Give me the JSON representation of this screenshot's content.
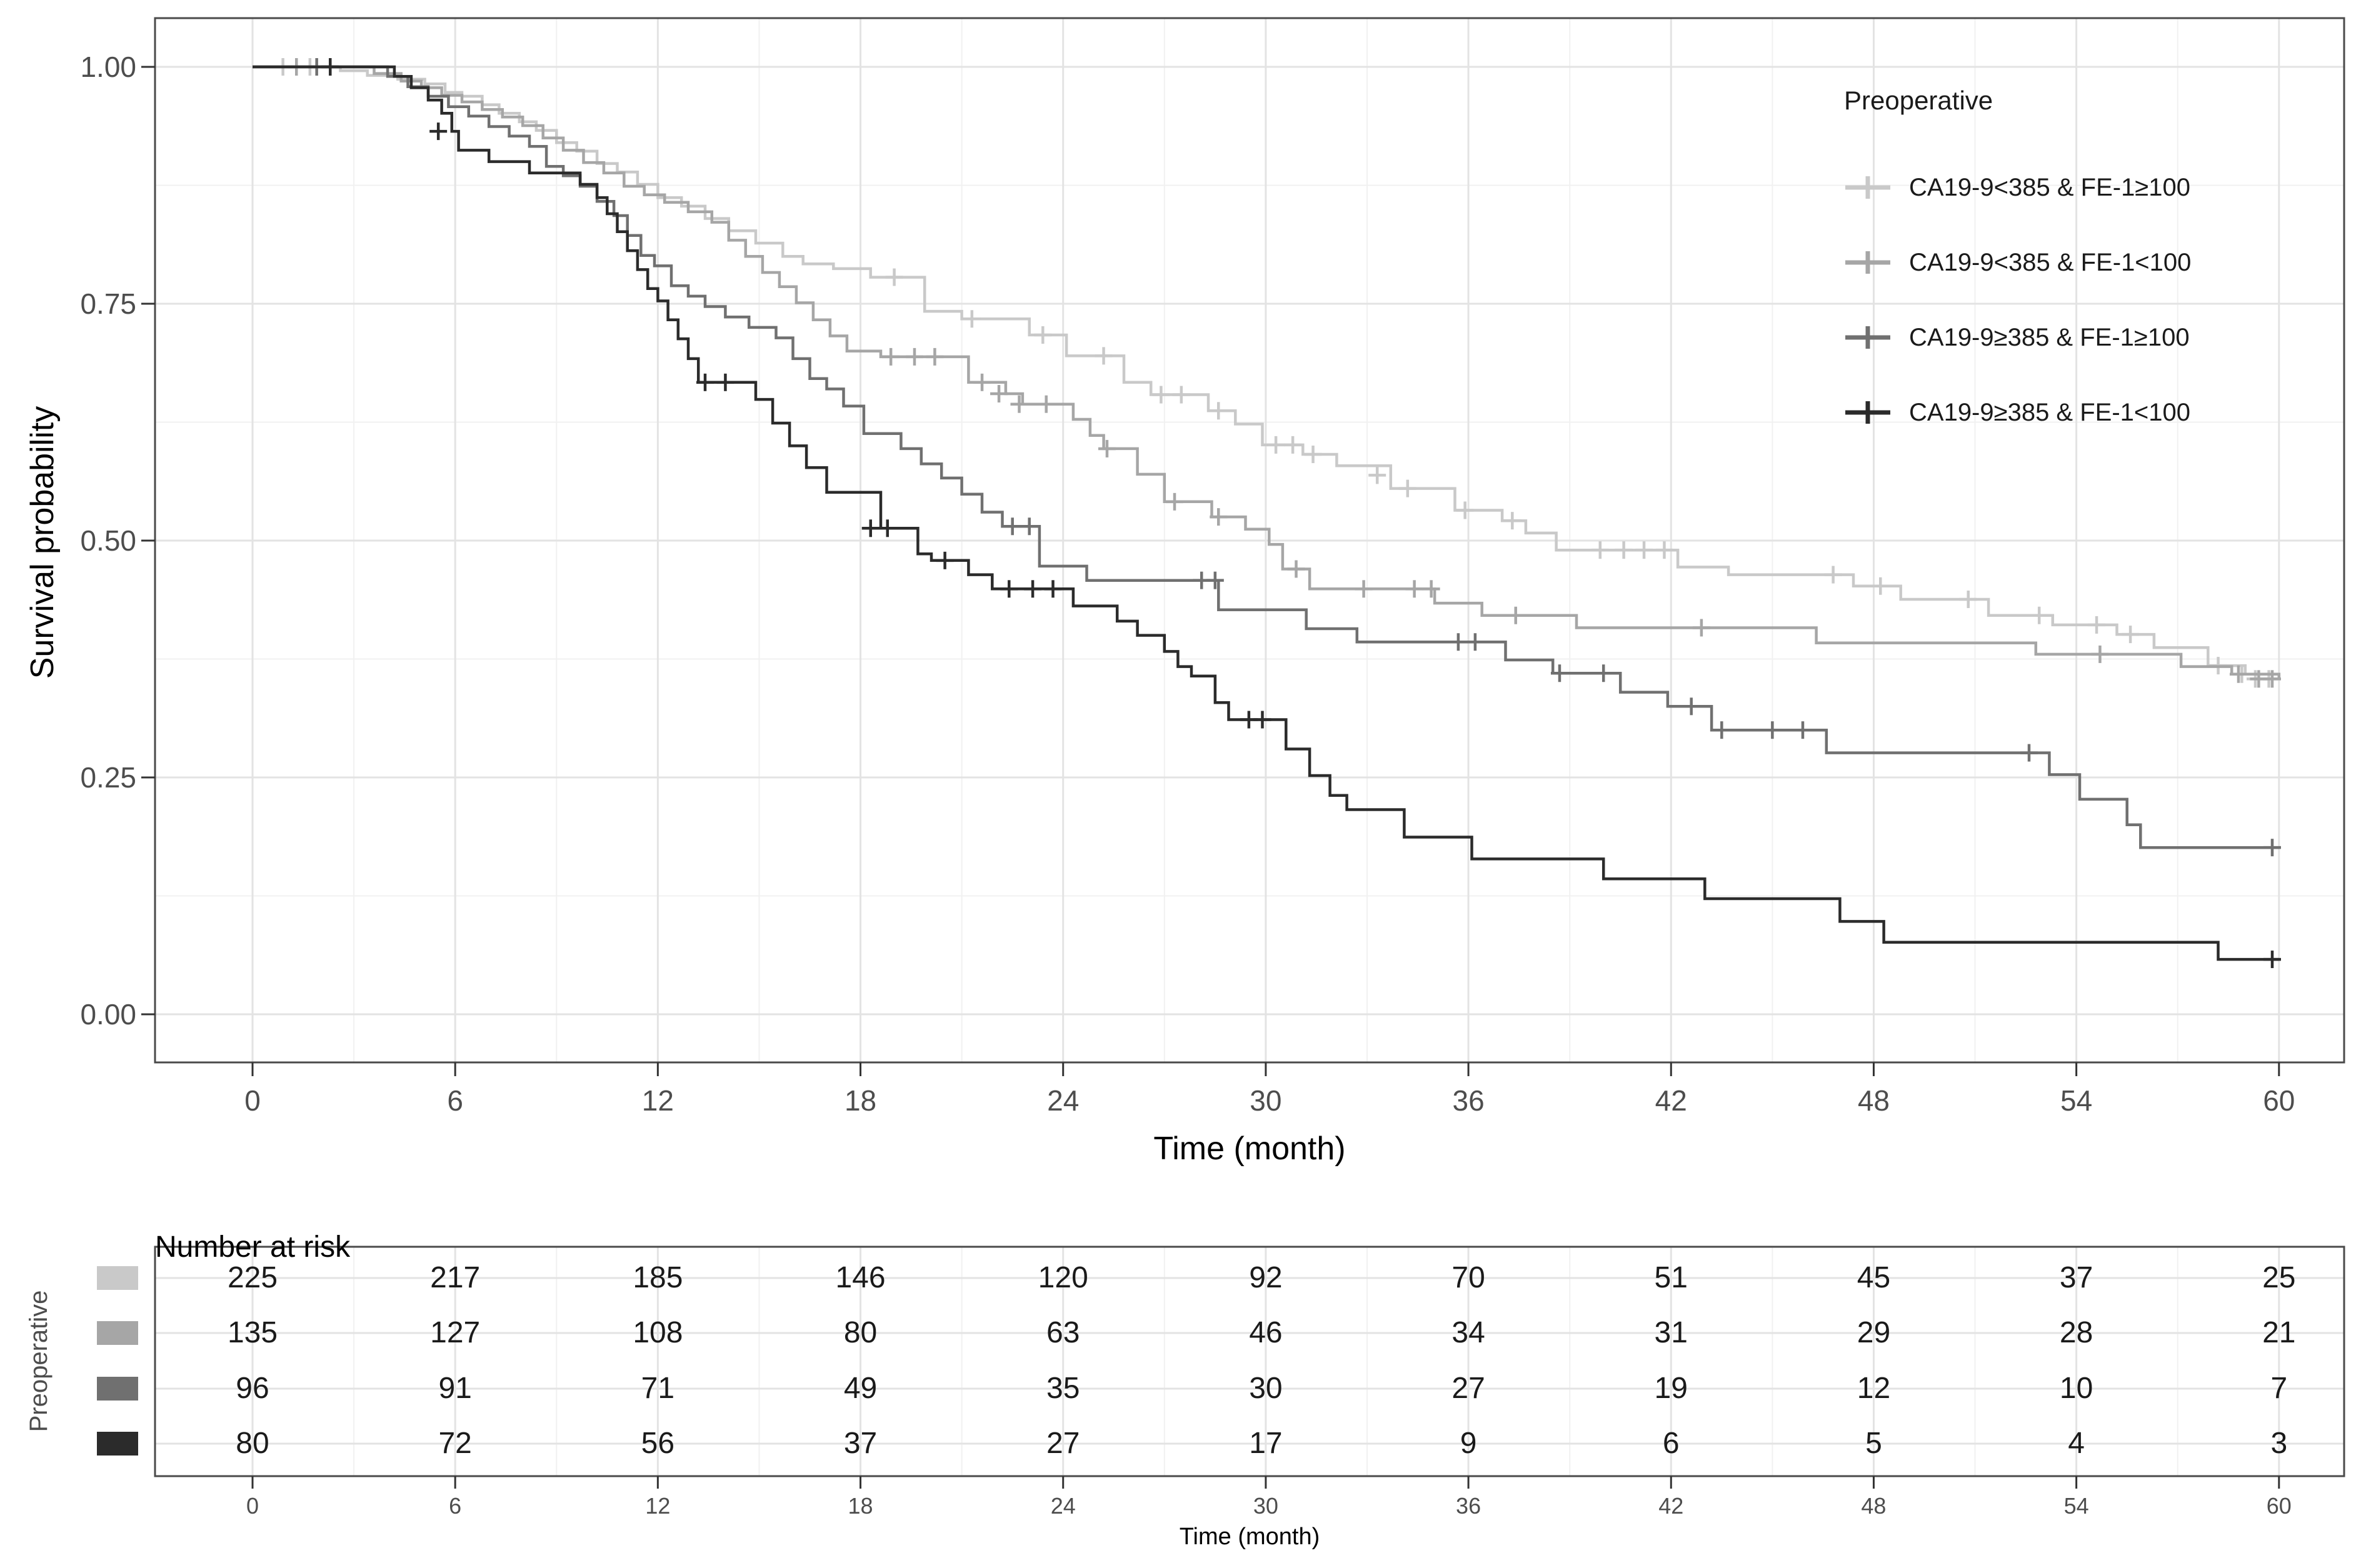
{
  "page": {
    "background": "#ffffff"
  },
  "chart_data": {
    "type": "line",
    "subtype": "kaplan-meier-step-survival",
    "title": "",
    "xlabel": "Time (month)",
    "ylabel": "Survival probability",
    "xlim": [
      0,
      60
    ],
    "ylim": [
      0,
      1
    ],
    "grid": "on",
    "x_ticks": [
      0,
      6,
      12,
      18,
      24,
      30,
      36,
      42,
      48,
      54,
      60
    ],
    "y_ticks": [
      1.0,
      0.75,
      0.5,
      0.25,
      0.0
    ],
    "y_tick_labels": [
      "1.00",
      "0.75",
      "0.50",
      "0.25",
      "0.00"
    ],
    "legend": {
      "title": "Preoperative",
      "position": "top-right"
    },
    "series": [
      {
        "name": "CA19-9<385 & FE-1≥100",
        "color": "#c9c9c9",
        "points": [
          [
            0,
            1
          ],
          [
            2.6,
            0.996
          ],
          [
            3.4,
            0.991
          ],
          [
            4.3,
            0.987
          ],
          [
            5.1,
            0.982
          ],
          [
            5.7,
            0.973
          ],
          [
            6.2,
            0.969
          ],
          [
            6.8,
            0.96
          ],
          [
            7.3,
            0.951
          ],
          [
            7.9,
            0.942
          ],
          [
            8.4,
            0.933
          ],
          [
            9.0,
            0.92
          ],
          [
            9.6,
            0.911
          ],
          [
            10.2,
            0.898
          ],
          [
            10.8,
            0.889
          ],
          [
            11.4,
            0.876
          ],
          [
            12.0,
            0.862
          ],
          [
            12.7,
            0.853
          ],
          [
            13.4,
            0.84
          ],
          [
            14.1,
            0.827
          ],
          [
            14.9,
            0.814
          ],
          [
            15.7,
            0.8
          ],
          [
            16.3,
            0.792
          ],
          [
            17.2,
            0.787
          ],
          [
            18.3,
            0.778
          ],
          [
            19.9,
            0.742
          ],
          [
            21.0,
            0.734
          ],
          [
            23.0,
            0.717
          ],
          [
            24.1,
            0.695
          ],
          [
            25.8,
            0.667
          ],
          [
            26.6,
            0.654
          ],
          [
            28.3,
            0.637
          ],
          [
            29.1,
            0.623
          ],
          [
            29.9,
            0.601
          ],
          [
            31.1,
            0.591
          ],
          [
            32.1,
            0.579
          ],
          [
            33.7,
            0.555
          ],
          [
            35.6,
            0.532
          ],
          [
            37.0,
            0.521
          ],
          [
            37.7,
            0.508
          ],
          [
            38.6,
            0.49
          ],
          [
            42.2,
            0.472
          ],
          [
            43.7,
            0.464
          ],
          [
            47.4,
            0.452
          ],
          [
            48.8,
            0.438
          ],
          [
            51.4,
            0.421
          ],
          [
            53.3,
            0.411
          ],
          [
            55.2,
            0.401
          ],
          [
            56.3,
            0.387
          ],
          [
            57.9,
            0.368
          ],
          [
            59.0,
            0.359
          ],
          [
            60,
            0.354
          ]
        ],
        "censors": [
          [
            0.9,
            1
          ],
          [
            1.7,
            1
          ],
          [
            19.0,
            0.778
          ],
          [
            21.3,
            0.734
          ],
          [
            23.4,
            0.717
          ],
          [
            25.2,
            0.695
          ],
          [
            26.9,
            0.654
          ],
          [
            27.5,
            0.654
          ],
          [
            28.6,
            0.637
          ],
          [
            30.3,
            0.601
          ],
          [
            30.8,
            0.601
          ],
          [
            31.4,
            0.591
          ],
          [
            33.3,
            0.569
          ],
          [
            34.2,
            0.555
          ],
          [
            35.9,
            0.532
          ],
          [
            37.3,
            0.521
          ],
          [
            39.9,
            0.49
          ],
          [
            40.6,
            0.49
          ],
          [
            41.2,
            0.49
          ],
          [
            41.8,
            0.49
          ],
          [
            46.8,
            0.464
          ],
          [
            48.2,
            0.452
          ],
          [
            50.8,
            0.438
          ],
          [
            52.9,
            0.421
          ],
          [
            54.6,
            0.411
          ],
          [
            55.6,
            0.401
          ],
          [
            58.2,
            0.368
          ],
          [
            58.9,
            0.359
          ],
          [
            59.3,
            0.354
          ],
          [
            59.7,
            0.354
          ]
        ]
      },
      {
        "name": "CA19-9<385 & FE-1<100",
        "color": "#a6a6a6",
        "points": [
          [
            0,
            1
          ],
          [
            3.6,
            0.993
          ],
          [
            4.4,
            0.985
          ],
          [
            5.0,
            0.978
          ],
          [
            5.6,
            0.97
          ],
          [
            6.2,
            0.963
          ],
          [
            6.8,
            0.955
          ],
          [
            7.4,
            0.947
          ],
          [
            8.0,
            0.938
          ],
          [
            8.6,
            0.925
          ],
          [
            9.2,
            0.912
          ],
          [
            9.8,
            0.899
          ],
          [
            10.4,
            0.888
          ],
          [
            11.0,
            0.874
          ],
          [
            11.6,
            0.865
          ],
          [
            12.2,
            0.857
          ],
          [
            12.9,
            0.847
          ],
          [
            13.6,
            0.836
          ],
          [
            14.1,
            0.817
          ],
          [
            14.6,
            0.8
          ],
          [
            15.1,
            0.783
          ],
          [
            15.6,
            0.768
          ],
          [
            16.1,
            0.751
          ],
          [
            16.6,
            0.733
          ],
          [
            17.1,
            0.716
          ],
          [
            17.6,
            0.7
          ],
          [
            18.6,
            0.694
          ],
          [
            21.2,
            0.667
          ],
          [
            22.3,
            0.655
          ],
          [
            22.8,
            0.644
          ],
          [
            24.3,
            0.628
          ],
          [
            24.8,
            0.611
          ],
          [
            25.2,
            0.597
          ],
          [
            26.2,
            0.57
          ],
          [
            27.0,
            0.541
          ],
          [
            28.4,
            0.525
          ],
          [
            29.4,
            0.512
          ],
          [
            30.1,
            0.496
          ],
          [
            30.5,
            0.47
          ],
          [
            31.3,
            0.449
          ],
          [
            35.0,
            0.434
          ],
          [
            36.4,
            0.421
          ],
          [
            39.2,
            0.408
          ],
          [
            46.3,
            0.392
          ],
          [
            52.8,
            0.38
          ],
          [
            57.1,
            0.367
          ],
          [
            58.6,
            0.359
          ],
          [
            60,
            0.354
          ]
        ],
        "censors": [
          [
            1.3,
            1
          ],
          [
            18.9,
            0.694
          ],
          [
            19.6,
            0.694
          ],
          [
            20.2,
            0.694
          ],
          [
            21.6,
            0.667
          ],
          [
            22.1,
            0.655
          ],
          [
            22.7,
            0.644
          ],
          [
            23.5,
            0.644
          ],
          [
            25.3,
            0.597
          ],
          [
            27.3,
            0.541
          ],
          [
            28.6,
            0.525
          ],
          [
            30.9,
            0.47
          ],
          [
            32.9,
            0.449
          ],
          [
            34.4,
            0.449
          ],
          [
            34.9,
            0.449
          ],
          [
            37.4,
            0.421
          ],
          [
            42.9,
            0.408
          ],
          [
            54.7,
            0.38
          ],
          [
            58.8,
            0.359
          ],
          [
            59.4,
            0.354
          ],
          [
            59.8,
            0.354
          ]
        ]
      },
      {
        "name": "CA19-9≥385 & FE-1≥100",
        "color": "#707070",
        "points": [
          [
            0,
            1
          ],
          [
            4.0,
            0.99
          ],
          [
            4.6,
            0.979
          ],
          [
            5.2,
            0.969
          ],
          [
            5.8,
            0.958
          ],
          [
            6.4,
            0.948
          ],
          [
            7.0,
            0.937
          ],
          [
            7.6,
            0.927
          ],
          [
            8.2,
            0.916
          ],
          [
            8.7,
            0.895
          ],
          [
            9.2,
            0.885
          ],
          [
            9.7,
            0.874
          ],
          [
            10.2,
            0.858
          ],
          [
            10.7,
            0.843
          ],
          [
            11.1,
            0.822
          ],
          [
            11.5,
            0.801
          ],
          [
            11.9,
            0.79
          ],
          [
            12.4,
            0.769
          ],
          [
            12.9,
            0.758
          ],
          [
            13.4,
            0.747
          ],
          [
            14.0,
            0.736
          ],
          [
            14.7,
            0.725
          ],
          [
            15.5,
            0.714
          ],
          [
            16.0,
            0.692
          ],
          [
            16.5,
            0.671
          ],
          [
            17.0,
            0.66
          ],
          [
            17.5,
            0.642
          ],
          [
            18.1,
            0.613
          ],
          [
            19.2,
            0.597
          ],
          [
            19.8,
            0.581
          ],
          [
            20.4,
            0.566
          ],
          [
            21.0,
            0.549
          ],
          [
            21.6,
            0.53
          ],
          [
            22.2,
            0.515
          ],
          [
            23.3,
            0.473
          ],
          [
            24.7,
            0.458
          ],
          [
            28.6,
            0.427
          ],
          [
            31.2,
            0.407
          ],
          [
            32.7,
            0.393
          ],
          [
            37.1,
            0.374
          ],
          [
            38.5,
            0.36
          ],
          [
            40.5,
            0.34
          ],
          [
            41.9,
            0.325
          ],
          [
            43.2,
            0.3
          ],
          [
            46.6,
            0.276
          ],
          [
            53.2,
            0.253
          ],
          [
            54.1,
            0.227
          ],
          [
            55.5,
            0.2
          ],
          [
            55.9,
            0.176
          ],
          [
            60,
            0.176
          ]
        ],
        "censors": [
          [
            1.9,
            1
          ],
          [
            22.5,
            0.515
          ],
          [
            23.0,
            0.515
          ],
          [
            28.1,
            0.458
          ],
          [
            28.5,
            0.458
          ],
          [
            35.7,
            0.393
          ],
          [
            36.2,
            0.393
          ],
          [
            38.7,
            0.36
          ],
          [
            40.0,
            0.36
          ],
          [
            42.6,
            0.325
          ],
          [
            43.5,
            0.3
          ],
          [
            45.0,
            0.3
          ],
          [
            45.9,
            0.3
          ],
          [
            52.6,
            0.276
          ],
          [
            59.8,
            0.176
          ]
        ]
      },
      {
        "name": "CA19-9≥385 & FE-1<100",
        "color": "#2b2b2b",
        "points": [
          [
            0,
            1
          ],
          [
            4.2,
            0.99
          ],
          [
            4.7,
            0.978
          ],
          [
            5.2,
            0.965
          ],
          [
            5.6,
            0.951
          ],
          [
            5.9,
            0.932
          ],
          [
            6.1,
            0.912
          ],
          [
            7.0,
            0.9
          ],
          [
            8.2,
            0.888
          ],
          [
            9.7,
            0.876
          ],
          [
            10.2,
            0.862
          ],
          [
            10.5,
            0.845
          ],
          [
            10.8,
            0.826
          ],
          [
            11.1,
            0.806
          ],
          [
            11.4,
            0.786
          ],
          [
            11.7,
            0.766
          ],
          [
            12.0,
            0.753
          ],
          [
            12.3,
            0.733
          ],
          [
            12.6,
            0.713
          ],
          [
            12.9,
            0.692
          ],
          [
            13.2,
            0.667
          ],
          [
            14.9,
            0.649
          ],
          [
            15.4,
            0.624
          ],
          [
            15.9,
            0.6
          ],
          [
            16.4,
            0.577
          ],
          [
            17.0,
            0.551
          ],
          [
            18.6,
            0.513
          ],
          [
            19.7,
            0.486
          ],
          [
            20.1,
            0.479
          ],
          [
            21.2,
            0.464
          ],
          [
            21.9,
            0.449
          ],
          [
            24.3,
            0.431
          ],
          [
            25.6,
            0.415
          ],
          [
            26.2,
            0.4
          ],
          [
            27.0,
            0.383
          ],
          [
            27.4,
            0.367
          ],
          [
            27.8,
            0.357
          ],
          [
            28.5,
            0.329
          ],
          [
            28.9,
            0.311
          ],
          [
            30.6,
            0.28
          ],
          [
            31.3,
            0.252
          ],
          [
            31.9,
            0.231
          ],
          [
            32.4,
            0.216
          ],
          [
            34.1,
            0.187
          ],
          [
            36.1,
            0.164
          ],
          [
            40.0,
            0.143
          ],
          [
            43.0,
            0.122
          ],
          [
            47.0,
            0.098
          ],
          [
            48.3,
            0.076
          ],
          [
            58.2,
            0.058
          ],
          [
            60,
            0.058
          ]
        ],
        "censors": [
          [
            2.3,
            1
          ],
          [
            5.5,
            0.932
          ],
          [
            13.4,
            0.667
          ],
          [
            14.0,
            0.667
          ],
          [
            18.3,
            0.513
          ],
          [
            18.8,
            0.513
          ],
          [
            20.5,
            0.479
          ],
          [
            22.4,
            0.449
          ],
          [
            23.1,
            0.449
          ],
          [
            23.7,
            0.449
          ],
          [
            29.5,
            0.311
          ],
          [
            29.9,
            0.311
          ],
          [
            59.8,
            0.058
          ]
        ]
      }
    ],
    "risk_table": {
      "title": "Number at risk",
      "group_axis_label": "Preoperative",
      "axis_label": "Time (month)",
      "time_points": [
        0,
        6,
        12,
        18,
        24,
        30,
        36,
        42,
        48,
        54,
        60
      ],
      "rows": [
        {
          "series": "CA19-9<385 & FE-1≥100",
          "color": "#c9c9c9",
          "values": [
            225,
            217,
            185,
            146,
            120,
            92,
            70,
            51,
            45,
            37,
            25
          ]
        },
        {
          "series": "CA19-9<385 & FE-1<100",
          "color": "#a6a6a6",
          "values": [
            135,
            127,
            108,
            80,
            63,
            46,
            34,
            31,
            29,
            28,
            21
          ]
        },
        {
          "series": "CA19-9≥385 & FE-1≥100",
          "color": "#707070",
          "values": [
            96,
            91,
            71,
            49,
            35,
            30,
            27,
            19,
            12,
            10,
            7
          ]
        },
        {
          "series": "CA19-9≥385 & FE-1<100",
          "color": "#2b2b2b",
          "values": [
            80,
            72,
            56,
            37,
            27,
            17,
            9,
            6,
            5,
            4,
            3
          ]
        }
      ]
    },
    "style": {
      "panel_border_color": "#4a4a4a",
      "grid_major_color": "#e3e3e3",
      "grid_minor_color": "#f1f1f1",
      "tick_color": "#333333",
      "tick_text_color": "#4d4d4d"
    }
  }
}
